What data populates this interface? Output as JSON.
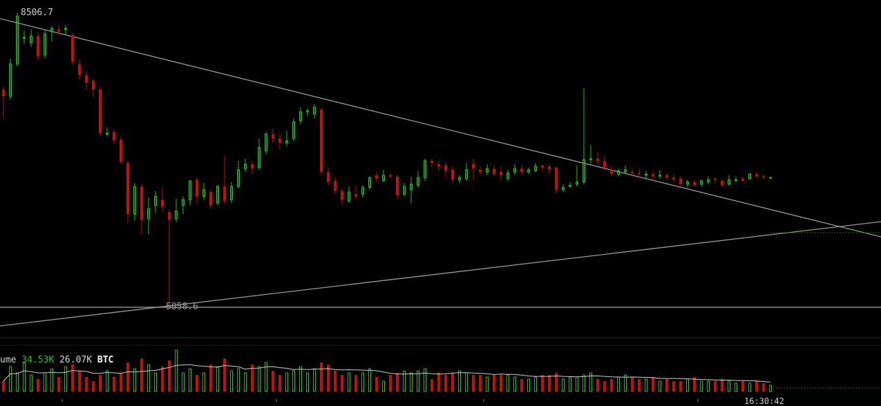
{
  "chart": {
    "high_label": "8506.7",
    "low_label": "5858.6",
    "volume_legend": {
      "prefix": "ume",
      "value_current": "34.53K",
      "value_average": "26.07K",
      "unit": "BTC"
    },
    "time_label": "16:30:42"
  },
  "colors": {
    "background": "#000000",
    "up": "#1ec41e",
    "down": "#c01010",
    "trendline": "#9a9a9a",
    "support": "#8a8a8a"
  },
  "chart_data": {
    "type": "candlestick",
    "y_range": [
      5700,
      8580
    ],
    "candles": [
      [
        7820,
        7760,
        7850,
        7560,
        "d"
      ],
      [
        7760,
        8050,
        8100,
        7730,
        "u"
      ],
      [
        8050,
        8480,
        8506.7,
        8030,
        "u"
      ],
      [
        8280,
        8290,
        8350,
        8230,
        "u"
      ],
      [
        8240,
        8300,
        8360,
        8200,
        "u"
      ],
      [
        8300,
        8120,
        8340,
        8080,
        "d"
      ],
      [
        8130,
        8320,
        8350,
        8100,
        "u"
      ],
      [
        8340,
        8370,
        8390,
        8250,
        "u"
      ],
      [
        8360,
        8340,
        8400,
        8310,
        "d"
      ],
      [
        8360,
        8370,
        8400,
        8310,
        "u"
      ],
      [
        8310,
        8070,
        8330,
        8040,
        "d"
      ],
      [
        8050,
        7950,
        8090,
        7910,
        "d"
      ],
      [
        7950,
        7880,
        7990,
        7820,
        "d"
      ],
      [
        7900,
        7820,
        7920,
        7760,
        "d"
      ],
      [
        7820,
        7430,
        7850,
        7400,
        "d"
      ],
      [
        7420,
        7430,
        7480,
        7400,
        "u"
      ],
      [
        7440,
        7360,
        7460,
        7330,
        "d"
      ],
      [
        7370,
        7170,
        7400,
        7150,
        "d"
      ],
      [
        7160,
        6700,
        7180,
        6620,
        "d"
      ],
      [
        6700,
        6950,
        6980,
        6640,
        "u"
      ],
      [
        6950,
        6650,
        6970,
        6520,
        "d"
      ],
      [
        6660,
        6750,
        6850,
        6520,
        "u"
      ],
      [
        6780,
        6860,
        6910,
        6710,
        "u"
      ],
      [
        6830,
        6770,
        6950,
        6720,
        "d"
      ],
      [
        6720,
        6650,
        6740,
        5858.6,
        "d"
      ],
      [
        6660,
        6730,
        6840,
        6630,
        "u"
      ],
      [
        6780,
        6830,
        6860,
        6700,
        "u"
      ],
      [
        6830,
        7000,
        7010,
        6780,
        "u"
      ],
      [
        7010,
        6860,
        7030,
        6800,
        "d"
      ],
      [
        6860,
        6920,
        6980,
        6830,
        "u"
      ],
      [
        6900,
        6780,
        6920,
        6750,
        "d"
      ],
      [
        6800,
        6950,
        6960,
        6780,
        "u"
      ],
      [
        6950,
        6820,
        7220,
        6780,
        "d"
      ],
      [
        6830,
        6950,
        6990,
        6800,
        "u"
      ],
      [
        6950,
        7100,
        7180,
        6930,
        "u"
      ],
      [
        7110,
        7150,
        7200,
        7080,
        "u"
      ],
      [
        7150,
        7110,
        7180,
        7060,
        "d"
      ],
      [
        7120,
        7300,
        7380,
        7100,
        "u"
      ],
      [
        7270,
        7420,
        7440,
        7240,
        "u"
      ],
      [
        7420,
        7380,
        7470,
        7340,
        "d"
      ],
      [
        7380,
        7340,
        7440,
        7280,
        "d"
      ],
      [
        7340,
        7360,
        7450,
        7310,
        "u"
      ],
      [
        7380,
        7530,
        7560,
        7360,
        "u"
      ],
      [
        7540,
        7620,
        7660,
        7510,
        "u"
      ],
      [
        7620,
        7630,
        7650,
        7580,
        "u"
      ],
      [
        7600,
        7660,
        7690,
        7560,
        "u"
      ],
      [
        7640,
        7080,
        7660,
        7050,
        "d"
      ],
      [
        7080,
        6990,
        7120,
        6960,
        "d"
      ],
      [
        7000,
        6910,
        7030,
        6880,
        "d"
      ],
      [
        6910,
        6830,
        6930,
        6780,
        "d"
      ],
      [
        6820,
        6900,
        6950,
        6800,
        "u"
      ],
      [
        6880,
        6860,
        6960,
        6830,
        "d"
      ],
      [
        6880,
        6940,
        6960,
        6850,
        "u"
      ],
      [
        6940,
        7030,
        7040,
        6920,
        "u"
      ],
      [
        7020,
        7050,
        7080,
        6990,
        "d"
      ],
      [
        7000,
        7050,
        7100,
        6990,
        "u"
      ],
      [
        7050,
        7040,
        7070,
        7020,
        "d"
      ],
      [
        7040,
        6870,
        7060,
        6840,
        "d"
      ],
      [
        6880,
        6950,
        6980,
        6860,
        "u"
      ],
      [
        6920,
        6970,
        7040,
        6800,
        "u"
      ],
      [
        6960,
        7030,
        7090,
        6940,
        "u"
      ],
      [
        7030,
        7180,
        7200,
        7000,
        "u"
      ],
      [
        7180,
        7160,
        7200,
        7120,
        "d"
      ],
      [
        7150,
        7130,
        7180,
        7090,
        "d"
      ],
      [
        7140,
        7090,
        7170,
        7030,
        "d"
      ],
      [
        7100,
        7010,
        7130,
        6980,
        "d"
      ],
      [
        7010,
        7030,
        7050,
        6980,
        "u"
      ],
      [
        7020,
        7100,
        7160,
        7000,
        "u"
      ],
      [
        7110,
        7150,
        7200,
        7010,
        "d"
      ],
      [
        7100,
        7080,
        7130,
        7060,
        "d"
      ],
      [
        7080,
        7110,
        7150,
        7050,
        "u"
      ],
      [
        7110,
        7060,
        7140,
        7040,
        "d"
      ],
      [
        7050,
        7080,
        7130,
        7010,
        "d"
      ],
      [
        7020,
        7070,
        7100,
        7000,
        "u"
      ],
      [
        7080,
        7110,
        7150,
        7050,
        "u"
      ],
      [
        7110,
        7080,
        7140,
        7060,
        "d"
      ],
      [
        7080,
        7100,
        7120,
        7060,
        "u"
      ],
      [
        7090,
        7130,
        7160,
        7080,
        "u"
      ],
      [
        7140,
        7120,
        7140,
        7090,
        "d"
      ],
      [
        7130,
        7100,
        7150,
        7060,
        "d"
      ],
      [
        7120,
        6920,
        7130,
        6890,
        "d"
      ],
      [
        6920,
        6940,
        6970,
        6900,
        "u"
      ],
      [
        6950,
        6960,
        6990,
        6940,
        "u"
      ],
      [
        6970,
        6990,
        7140,
        6950,
        "u"
      ],
      [
        6990,
        7190,
        7830,
        6970,
        "u"
      ],
      [
        7190,
        7200,
        7320,
        7150,
        "u"
      ],
      [
        7200,
        7180,
        7260,
        7140,
        "d"
      ],
      [
        7180,
        7120,
        7220,
        7090,
        "d"
      ],
      [
        7100,
        7060,
        7140,
        7050,
        "d"
      ],
      [
        7060,
        7090,
        7110,
        7040,
        "u"
      ],
      [
        7080,
        7100,
        7140,
        7070,
        "u"
      ],
      [
        7080,
        7070,
        7110,
        7040,
        "d"
      ],
      [
        7070,
        7060,
        7110,
        7030,
        "d"
      ],
      [
        7050,
        7060,
        7090,
        7020,
        "u"
      ],
      [
        7060,
        7040,
        7090,
        7020,
        "d"
      ],
      [
        7050,
        7050,
        7100,
        7020,
        "u"
      ],
      [
        7050,
        7030,
        7070,
        7010,
        "d"
      ],
      [
        7030,
        7010,
        7060,
        6990,
        "d"
      ],
      [
        7020,
        6970,
        7040,
        6960,
        "d"
      ],
      [
        6970,
        6990,
        7010,
        6940,
        "u"
      ],
      [
        6990,
        6960,
        7010,
        6950,
        "d"
      ],
      [
        6970,
        7000,
        7010,
        6950,
        "u"
      ],
      [
        6990,
        7010,
        7040,
        6970,
        "u"
      ],
      [
        7010,
        7020,
        7030,
        6980,
        "d"
      ],
      [
        7000,
        6960,
        7020,
        6950,
        "d"
      ],
      [
        6970,
        7010,
        7050,
        6960,
        "u"
      ],
      [
        7010,
        7010,
        7040,
        6990,
        "u"
      ],
      [
        7000,
        7020,
        7040,
        6990,
        "d"
      ],
      [
        7020,
        7060,
        7070,
        7010,
        "u"
      ],
      [
        7060,
        7040,
        7080,
        7030,
        "d"
      ],
      [
        7040,
        7030,
        7060,
        7020,
        "d"
      ],
      [
        7030,
        7030,
        7040,
        7020,
        "u"
      ]
    ],
    "volumes": [
      5,
      12,
      9,
      14,
      8,
      6,
      9,
      11,
      7,
      12,
      13,
      10,
      7,
      5,
      8,
      10,
      7,
      9,
      14,
      11,
      16,
      13,
      9,
      12,
      15,
      20,
      9,
      11,
      8,
      9,
      13,
      12,
      16,
      10,
      11,
      9,
      13,
      12,
      14,
      10,
      8,
      9,
      10,
      12,
      9,
      11,
      14,
      13,
      10,
      8,
      9,
      8,
      9,
      11,
      7,
      5,
      8,
      9,
      10,
      9,
      10,
      11,
      6,
      9,
      8,
      9,
      10,
      9,
      8,
      8,
      7,
      8,
      8,
      8,
      7,
      6,
      6,
      7,
      8,
      8,
      9,
      6,
      7,
      7,
      8,
      9,
      6,
      5,
      6,
      7,
      8,
      7,
      6,
      6,
      7,
      5,
      6,
      5,
      5,
      6,
      7,
      5,
      5,
      5,
      6,
      5,
      4,
      5,
      4,
      5,
      4,
      3
    ]
  }
}
